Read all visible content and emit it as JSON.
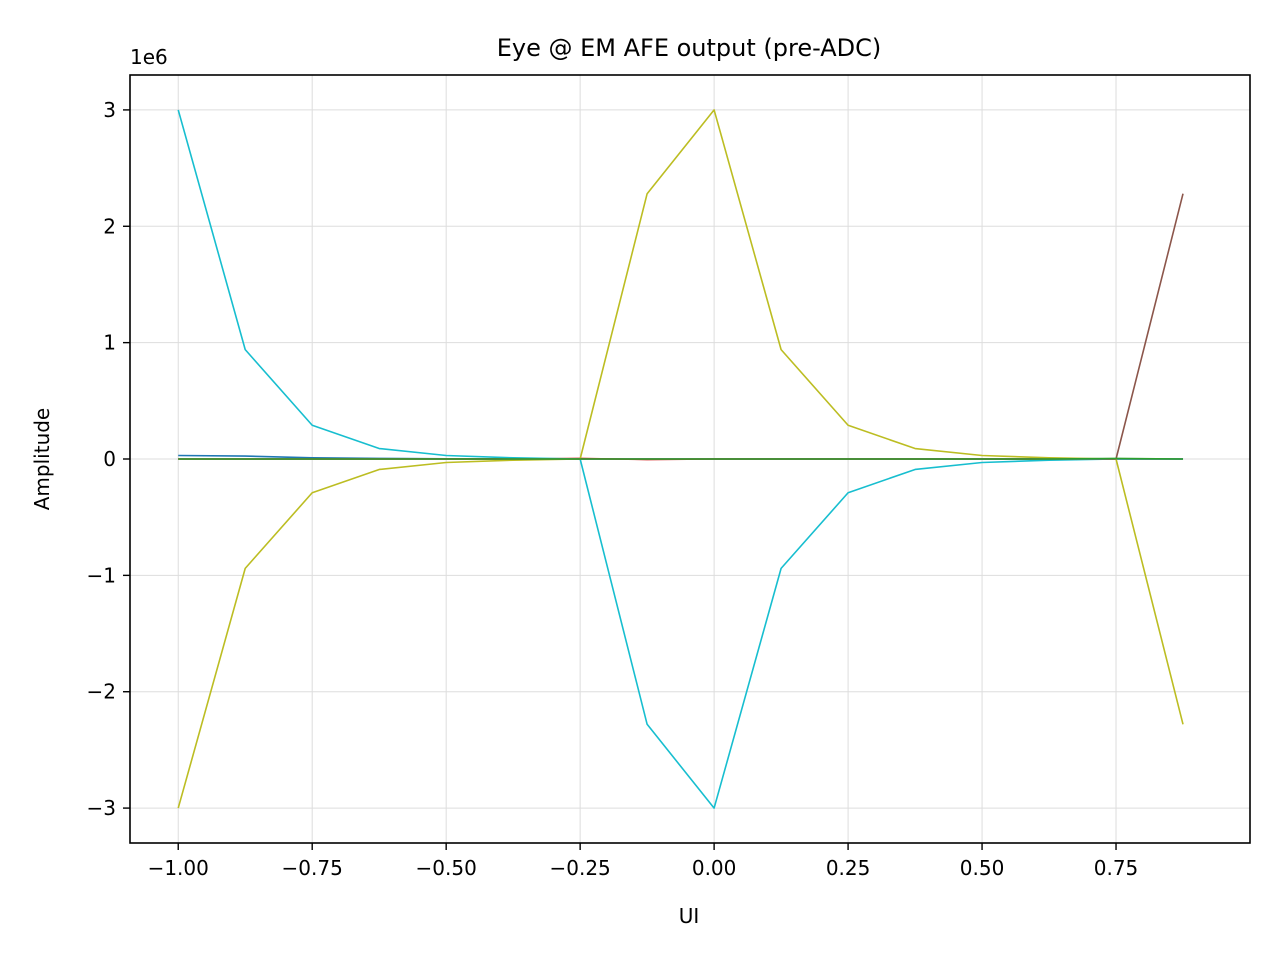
{
  "chart_data": {
    "type": "line",
    "title": "Eye @ EM AFE output (pre-ADC)",
    "xlabel": "UI",
    "ylabel": "Amplitude",
    "y_offset_label": "1e6",
    "y_scale": 1000000,
    "xlim": [
      -1.09,
      1.0
    ],
    "ylim": [
      -3.3,
      3.3
    ],
    "x_ticks": [
      -1.0,
      -0.75,
      -0.5,
      -0.25,
      0.0,
      0.25,
      0.5,
      0.75
    ],
    "x_tick_labels": [
      "−1.00",
      "−0.75",
      "−0.50",
      "−0.25",
      "0.00",
      "0.25",
      "0.50",
      "0.75"
    ],
    "y_ticks": [
      -3,
      -2,
      -1,
      0,
      1,
      2,
      3
    ],
    "y_tick_labels": [
      "−3",
      "−2",
      "−1",
      "0",
      "1",
      "2",
      "3"
    ],
    "grid": true,
    "x": [
      -1.0,
      -0.875,
      -0.75,
      -0.625,
      -0.5,
      -0.375,
      -0.25,
      -0.125,
      0.0,
      0.125,
      0.25,
      0.375,
      0.5,
      0.625,
      0.75,
      0.875
    ],
    "series": [
      {
        "color": "#1f77b4",
        "values": [
          0.03,
          0.025,
          0.01,
          0.005,
          0.002,
          0.001,
          0.0,
          0.0,
          0.0,
          0.0,
          0.0,
          0.0,
          0.0,
          0.0,
          0.0,
          0.0
        ]
      },
      {
        "color": "#9467bd",
        "values": [
          0.0,
          0.0,
          0.0,
          0.0,
          0.0,
          0.0,
          0.0,
          0.0,
          0.0,
          0.0,
          0.0,
          0.0,
          0.0,
          0.0,
          0.0,
          0.0
        ]
      },
      {
        "color": "#d62728",
        "values": [
          0.0,
          0.0,
          0.0,
          0.0,
          0.0,
          0.0,
          0.005,
          -0.005,
          0.0,
          0.0,
          0.0,
          0.0,
          0.0,
          0.0,
          0.0,
          0.0
        ]
      },
      {
        "color": "#17becf",
        "values": [
          3.0,
          0.94,
          0.29,
          0.09,
          0.03,
          0.01,
          0.0,
          -2.28,
          -3.0,
          -0.94,
          -0.29,
          -0.09,
          -0.03,
          -0.01,
          0.0,
          0.0
        ]
      },
      {
        "color": "#bcbd22",
        "values": [
          -3.0,
          -0.94,
          -0.29,
          -0.09,
          -0.03,
          -0.01,
          0.0,
          2.28,
          3.0,
          0.94,
          0.29,
          0.09,
          0.03,
          0.01,
          0.0,
          -2.28
        ]
      },
      {
        "color": "#8c564b",
        "values": [
          0.0,
          0.0,
          0.0,
          0.0,
          0.0,
          0.0,
          0.0,
          0.0,
          0.0,
          0.0,
          0.0,
          0.0,
          0.0,
          0.0,
          0.0,
          2.28
        ]
      },
      {
        "color": "#2ca02c",
        "values": [
          0.0,
          0.0,
          0.0,
          0.0,
          0.0,
          0.0,
          0.0,
          0.0,
          0.0,
          0.0,
          0.0,
          0.0,
          0.0,
          0.0,
          0.005,
          0.0
        ]
      }
    ]
  }
}
